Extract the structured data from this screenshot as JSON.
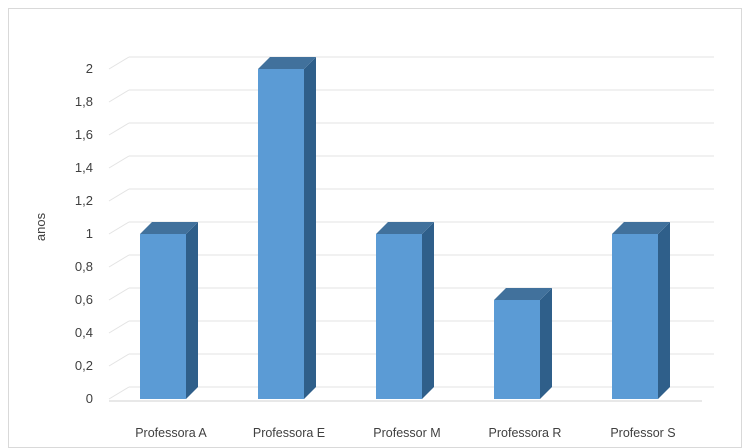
{
  "chart_data": {
    "type": "bar",
    "style": "3d-column",
    "categories": [
      "Professora A",
      "Professora E",
      "Professor M",
      "Professora R",
      "Professor S"
    ],
    "values": [
      1,
      2,
      1,
      0.6,
      1
    ],
    "ylabel": "anos",
    "xlabel": "",
    "ylim": [
      0,
      2
    ],
    "yticks": [
      "0",
      "0,2",
      "0,4",
      "0,6",
      "0,8",
      "1",
      "1,2",
      "1,4",
      "1,6",
      "1,8",
      "2"
    ],
    "grid": true,
    "legend": "none",
    "colors": {
      "bar_front": "#5b9bd5",
      "bar_side": "#2f5f8a",
      "bar_top": "#41719c",
      "grid": "#e3e3e3",
      "text": "#404040"
    }
  }
}
